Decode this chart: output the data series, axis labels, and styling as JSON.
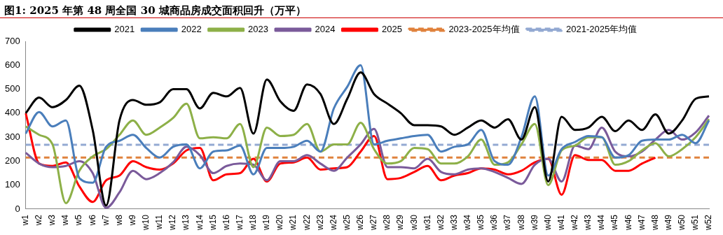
{
  "chart_data": {
    "type": "line",
    "title": "图1:  2025 年第 48 周全国 30 城商品房成交面积回升（万平）",
    "categories": [
      "w1",
      "w2",
      "w3",
      "w4",
      "w5",
      "w6",
      "w7",
      "w8",
      "w9",
      "w10",
      "w11",
      "w12",
      "w13",
      "w14",
      "w15",
      "w16",
      "w17",
      "w18",
      "w19",
      "w20",
      "w21",
      "w22",
      "w23",
      "w24",
      "w25",
      "w26",
      "w27",
      "w28",
      "w29",
      "w30",
      "w31",
      "w32",
      "w33",
      "w34",
      "w35",
      "w36",
      "w37",
      "w38",
      "w39",
      "w40",
      "w41",
      "w42",
      "w43",
      "w44",
      "w45",
      "w46",
      "w47",
      "w48",
      "w49",
      "w50",
      "w51",
      "w52"
    ],
    "series": [
      {
        "name": "2021",
        "color": "#000000",
        "values": [
          400,
          465,
          425,
          455,
          515,
          330,
          15,
          370,
          455,
          435,
          445,
          500,
          500,
          420,
          485,
          470,
          505,
          315,
          540,
          450,
          410,
          520,
          480,
          355,
          460,
          570,
          480,
          440,
          400,
          350,
          350,
          345,
          310,
          340,
          370,
          340,
          375,
          290,
          425,
          115,
          385,
          330,
          340,
          385,
          325,
          370,
          330,
          395,
          315,
          370,
          460,
          470
        ]
      },
      {
        "name": "2022",
        "color": "#4a7ebb",
        "values": [
          315,
          405,
          345,
          370,
          130,
          110,
          260,
          285,
          310,
          255,
          215,
          260,
          270,
          170,
          240,
          245,
          265,
          145,
          255,
          255,
          260,
          285,
          240,
          420,
          510,
          600,
          270,
          285,
          295,
          305,
          310,
          240,
          260,
          270,
          330,
          200,
          185,
          300,
          470,
          140,
          250,
          280,
          305,
          300,
          215,
          225,
          285,
          290,
          290,
          310,
          275,
          370
        ]
      },
      {
        "name": "2023",
        "color": "#8db048",
        "values": [
          345,
          310,
          270,
          25,
          160,
          220,
          250,
          310,
          370,
          310,
          340,
          380,
          440,
          295,
          300,
          295,
          355,
          175,
          340,
          305,
          310,
          355,
          240,
          270,
          270,
          360,
          250,
          190,
          200,
          255,
          250,
          190,
          190,
          220,
          290,
          185,
          195,
          270,
          355,
          100,
          245,
          265,
          300,
          300,
          185,
          200,
          245,
          275,
          220,
          250,
          300,
          375
        ]
      },
      {
        "name": "2024",
        "color": "#7a5a9a",
        "values": [
          235,
          190,
          175,
          180,
          200,
          150,
          5,
          70,
          160,
          125,
          150,
          195,
          260,
          225,
          150,
          180,
          190,
          185,
          120,
          200,
          200,
          225,
          190,
          160,
          215,
          270,
          335,
          175,
          175,
          170,
          210,
          155,
          145,
          165,
          170,
          155,
          130,
          105,
          185,
          210,
          115,
          265,
          250,
          340,
          240,
          220,
          240,
          290,
          330,
          290,
          320,
          390
        ]
      },
      {
        "name": "2025",
        "color": "#ff0000",
        "values": [
          400,
          190,
          180,
          195,
          95,
          30,
          120,
          140,
          200,
          175,
          165,
          190,
          245,
          255,
          120,
          145,
          150,
          210,
          115,
          190,
          195,
          215,
          165,
          170,
          175,
          240,
          305,
          125,
          130,
          155,
          180,
          120,
          140,
          150,
          170,
          165,
          145,
          160,
          195,
          210,
          60,
          225,
          205,
          205,
          160,
          160,
          190,
          215,
          null,
          null,
          null,
          null
        ]
      },
      {
        "name": "2023-2025年均值",
        "color": "#e0823d",
        "line_style": "dashed",
        "values": [
          215,
          215,
          215,
          215,
          215,
          215,
          215,
          215,
          215,
          215,
          215,
          215,
          215,
          215,
          215,
          215,
          215,
          215,
          215,
          215,
          215,
          215,
          215,
          215,
          215,
          215,
          215,
          215,
          215,
          215,
          215,
          215,
          215,
          215,
          215,
          215,
          215,
          215,
          215,
          215,
          215,
          215,
          215,
          215,
          215,
          215,
          215,
          215,
          215,
          215,
          215,
          215
        ]
      },
      {
        "name": "2021-2025年均值",
        "color": "#93a9d2",
        "line_style": "dashed",
        "values": [
          268,
          268,
          268,
          268,
          268,
          268,
          268,
          268,
          268,
          268,
          268,
          268,
          268,
          268,
          268,
          268,
          268,
          268,
          268,
          268,
          268,
          268,
          268,
          268,
          268,
          268,
          268,
          268,
          268,
          268,
          268,
          268,
          268,
          268,
          268,
          268,
          268,
          268,
          268,
          268,
          268,
          268,
          268,
          268,
          268,
          268,
          268,
          268,
          268,
          268,
          268,
          268
        ]
      }
    ],
    "ylim": [
      0,
      700
    ],
    "yticks": [
      0,
      100,
      200,
      300,
      400,
      500,
      600,
      700
    ],
    "grid": false,
    "legend": "top",
    "marker": "none",
    "line_style": "solid"
  }
}
